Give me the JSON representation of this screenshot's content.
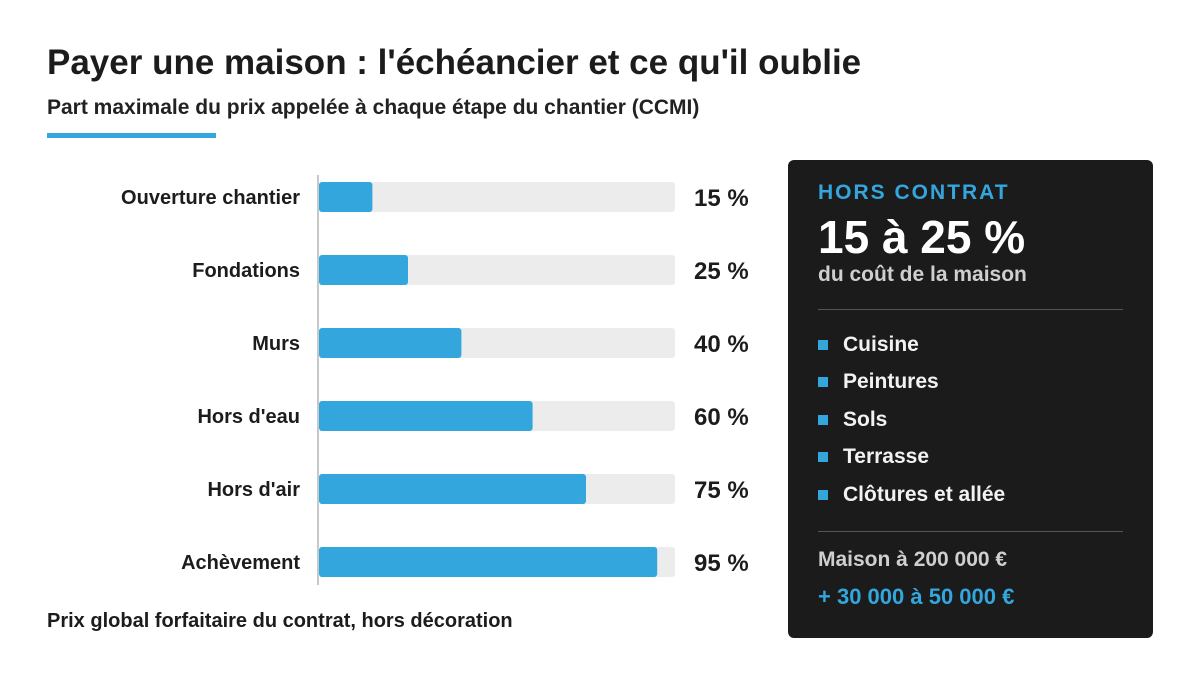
{
  "header": {
    "title": "Payer une maison : l'échéancier et ce qu'il oublie",
    "subtitle": "Part maximale du prix appelée à chaque étape du chantier (CCMI)"
  },
  "note": "Prix global forfaitaire du contrat, hors décoration",
  "colors": {
    "accent": "#33a6de",
    "track": "#ececec",
    "panel": "#1b1b1b",
    "axis": "#c8c8c8"
  },
  "chart_data": {
    "type": "bar",
    "orientation": "horizontal",
    "categories": [
      "Ouverture chantier",
      "Fondations",
      "Murs",
      "Hors d'eau",
      "Hors d'air",
      "Achèvement"
    ],
    "values": [
      15,
      25,
      40,
      60,
      75,
      95
    ],
    "value_labels": [
      "15 %",
      "25 %",
      "40 %",
      "60 %",
      "75 %",
      "95 %"
    ],
    "xlim": [
      0,
      100
    ],
    "grid": false
  },
  "panel": {
    "label": "HORS CONTRAT",
    "big": "15 à 25 %",
    "sub": "du coût de la maison",
    "items": [
      "Cuisine",
      "Peintures",
      "Sols",
      "Terrasse",
      "Clôtures et allée"
    ],
    "price": "Maison à 200 000 €",
    "extra": "+ 30 000 à 50 000 €"
  }
}
